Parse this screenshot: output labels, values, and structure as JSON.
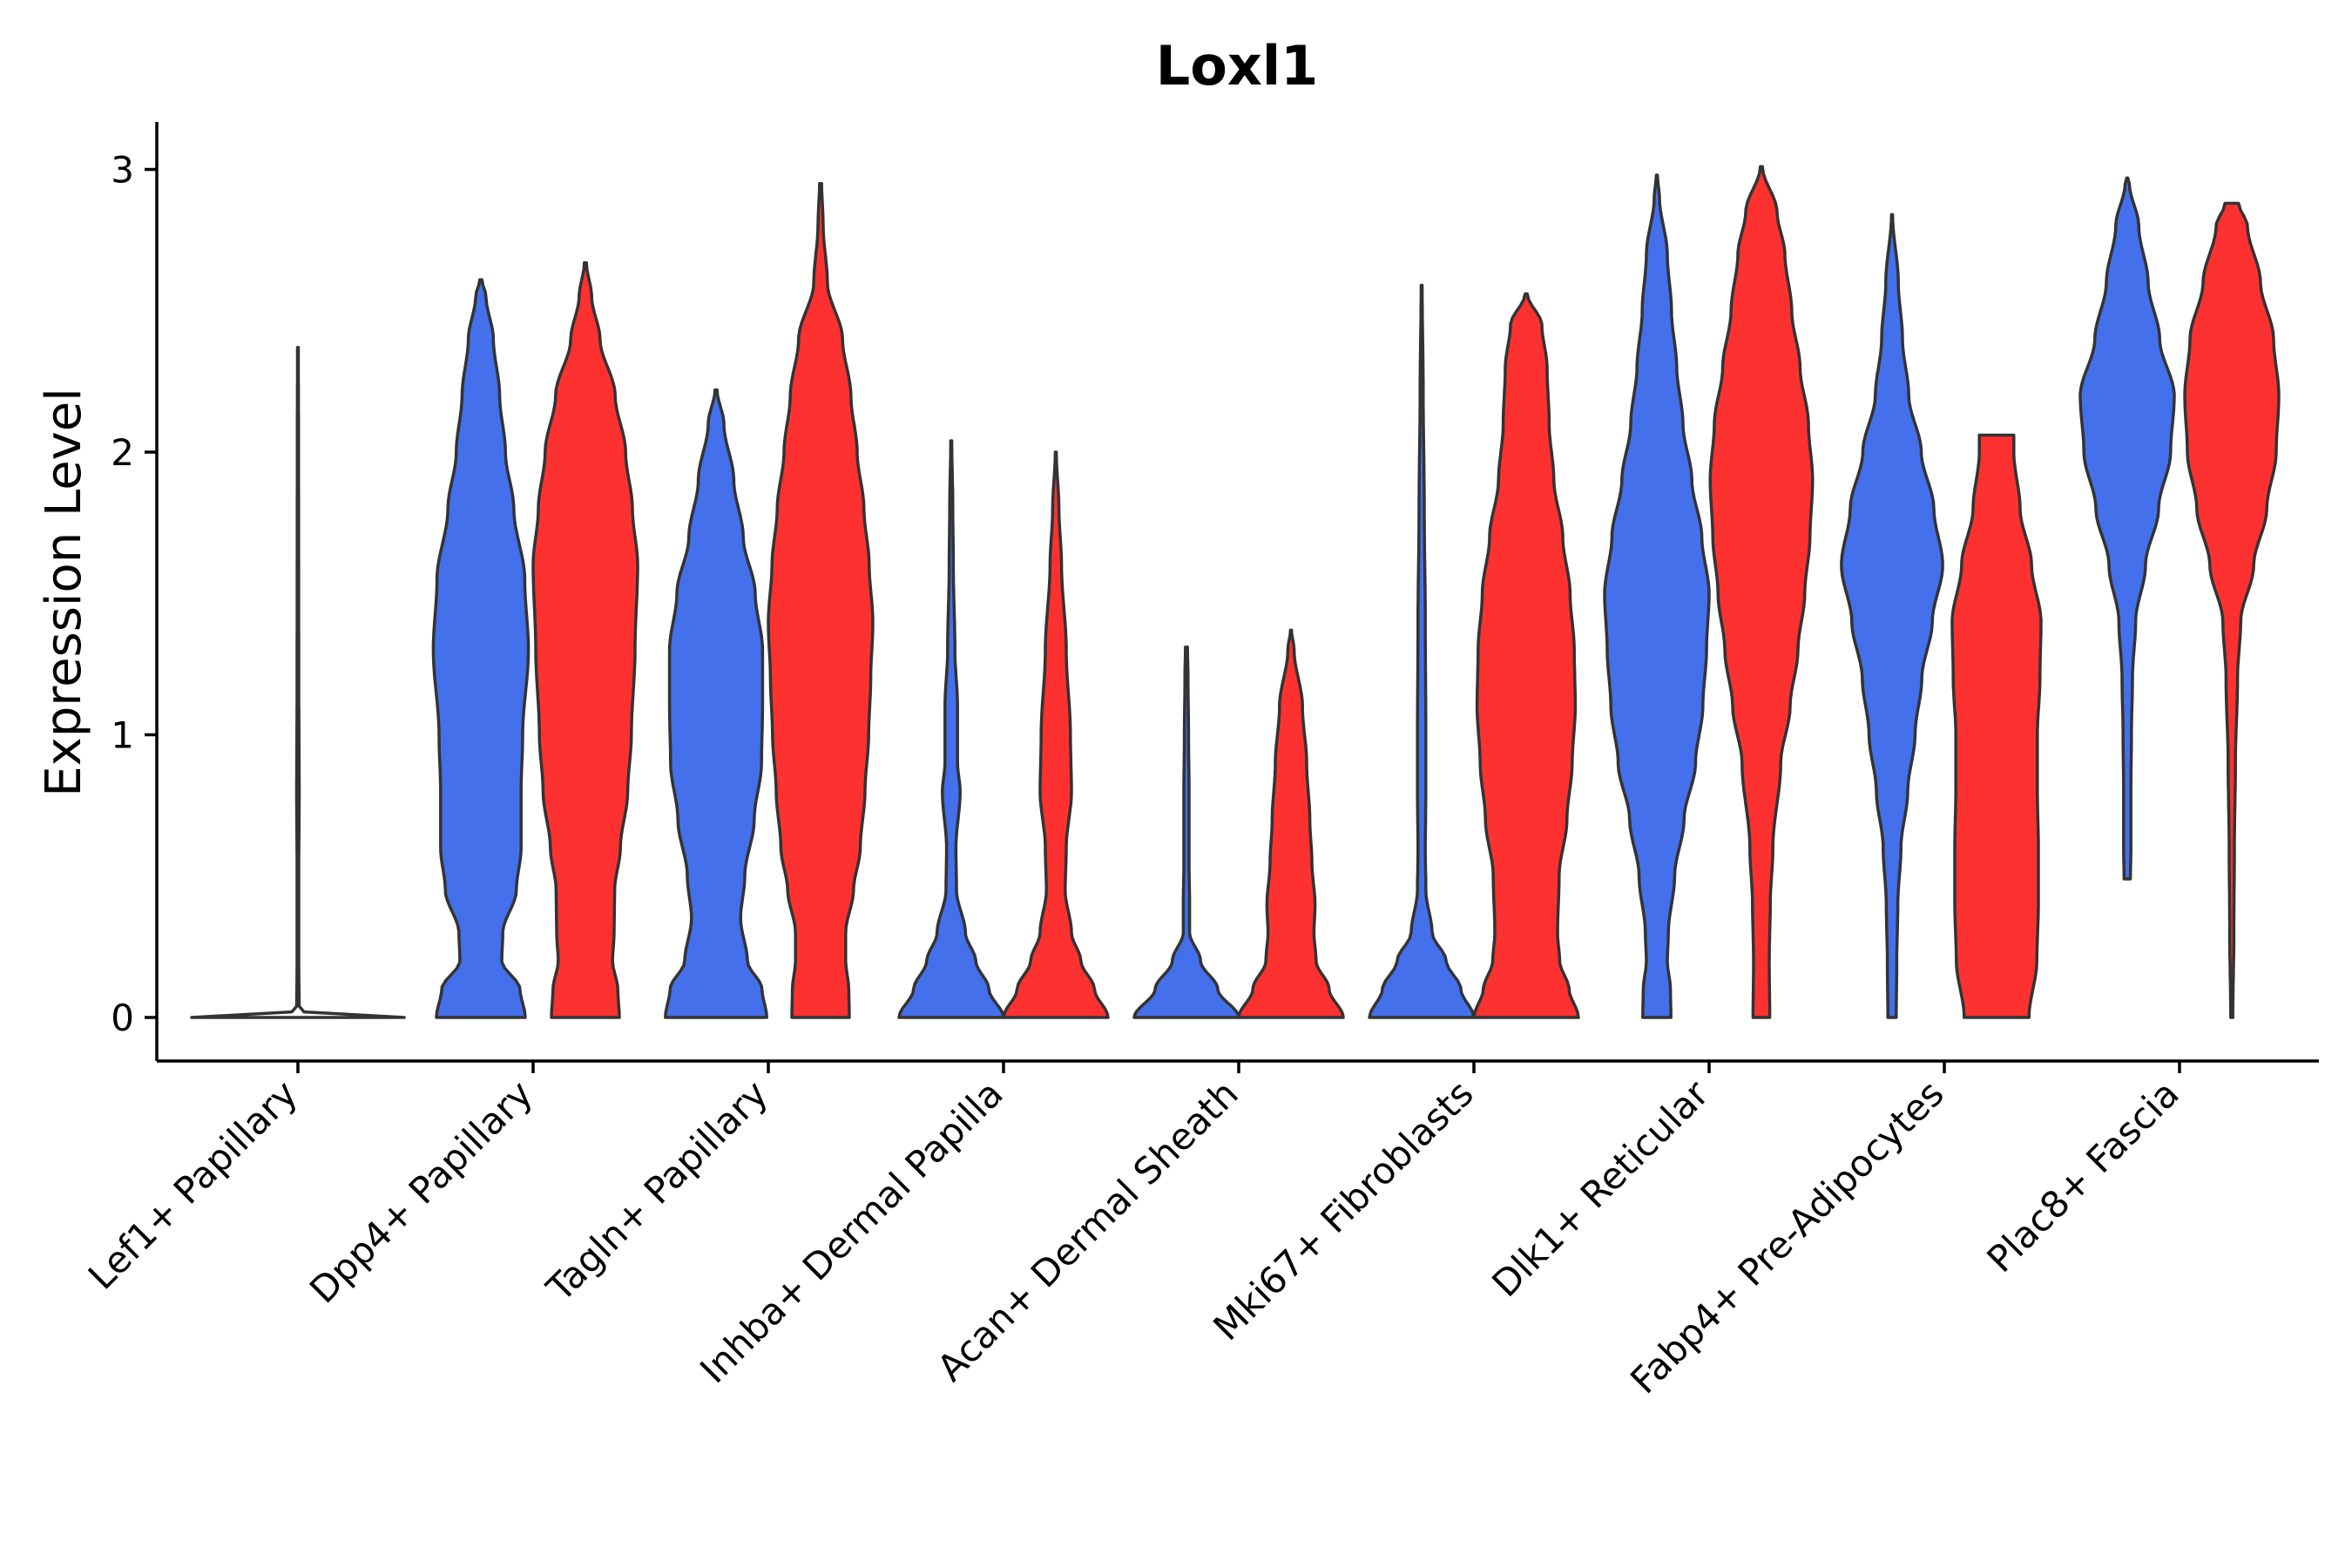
{
  "chart_data": {
    "type": "violin",
    "title": "Loxl1",
    "xlabel": "",
    "ylabel": "Expression Level",
    "ylim": [
      -0.15,
      3.15
    ],
    "yticks": [
      0,
      1,
      2,
      3
    ],
    "grid": false,
    "colors": {
      "blue": "#4470ec",
      "red": "#fe3131",
      "single": "#ffffff"
    },
    "categories": [
      "Lef1+ Papillary",
      "Dpp4+ Papillary",
      "Tagln+ Papillary",
      "Inhba+ Dermal Papilla",
      "Acan+ Dermal Sheath",
      "Mki67+ Fibroblasts",
      "Dlk1+ Reticular",
      "Fabp4+ Pre-Adipocytes",
      "Plac8+ Fascia"
    ],
    "violins": [
      {
        "category": "Lef1+ Papillary",
        "group": "single",
        "color": "single",
        "offset": 0,
        "ymin": 0,
        "ymax": 2.37,
        "density": [
          [
            0,
            1
          ],
          [
            0.004,
            0.55
          ],
          [
            0.01,
            0.1
          ],
          [
            0.03,
            0.012
          ],
          [
            0.2,
            0.008
          ],
          [
            0.5,
            0.008
          ],
          [
            0.8,
            0.012
          ],
          [
            1.2,
            0.008
          ],
          [
            2.0,
            0.006
          ],
          [
            2.37,
            0.004
          ]
        ]
      },
      {
        "category": "Dpp4+ Papillary",
        "group": "blue",
        "color": "blue",
        "offset": -0.5,
        "ymin": 0,
        "ymax": 2.61,
        "density": [
          [
            0,
            0.85
          ],
          [
            0.1,
            0.75
          ],
          [
            0.2,
            0.4
          ],
          [
            0.3,
            0.42
          ],
          [
            0.45,
            0.68
          ],
          [
            0.6,
            0.77
          ],
          [
            0.8,
            0.77
          ],
          [
            1.0,
            0.8
          ],
          [
            1.3,
            0.91
          ],
          [
            1.55,
            0.84
          ],
          [
            1.8,
            0.63
          ],
          [
            2.0,
            0.47
          ],
          [
            2.2,
            0.36
          ],
          [
            2.4,
            0.24
          ],
          [
            2.55,
            0.1
          ],
          [
            2.61,
            0.02
          ]
        ]
      },
      {
        "category": "Dpp4+ Papillary",
        "group": "red",
        "color": "red",
        "offset": 0.5,
        "ymin": 0,
        "ymax": 2.67,
        "density": [
          [
            0,
            0.65
          ],
          [
            0.1,
            0.62
          ],
          [
            0.2,
            0.52
          ],
          [
            0.3,
            0.55
          ],
          [
            0.45,
            0.56
          ],
          [
            0.6,
            0.67
          ],
          [
            0.8,
            0.81
          ],
          [
            1.0,
            0.88
          ],
          [
            1.3,
            0.95
          ],
          [
            1.6,
            1.0
          ],
          [
            1.8,
            0.9
          ],
          [
            2.0,
            0.77
          ],
          [
            2.2,
            0.57
          ],
          [
            2.4,
            0.28
          ],
          [
            2.55,
            0.12
          ],
          [
            2.67,
            0.02
          ]
        ]
      },
      {
        "category": "Tagln+ Papillary",
        "group": "blue",
        "color": "blue",
        "offset": -0.5,
        "ymin": 0,
        "ymax": 2.22,
        "density": [
          [
            0,
            0.97
          ],
          [
            0.1,
            0.88
          ],
          [
            0.2,
            0.6
          ],
          [
            0.35,
            0.47
          ],
          [
            0.5,
            0.55
          ],
          [
            0.7,
            0.73
          ],
          [
            0.9,
            0.87
          ],
          [
            1.1,
            0.89
          ],
          [
            1.3,
            0.89
          ],
          [
            1.5,
            0.75
          ],
          [
            1.7,
            0.52
          ],
          [
            1.9,
            0.34
          ],
          [
            2.1,
            0.15
          ],
          [
            2.22,
            0.02
          ]
        ]
      },
      {
        "category": "Tagln+ Papillary",
        "group": "red",
        "color": "red",
        "offset": 0.5,
        "ymin": 0,
        "ymax": 2.95,
        "density": [
          [
            0,
            0.55
          ],
          [
            0.1,
            0.54
          ],
          [
            0.2,
            0.48
          ],
          [
            0.3,
            0.48
          ],
          [
            0.45,
            0.63
          ],
          [
            0.6,
            0.76
          ],
          [
            0.8,
            0.85
          ],
          [
            1.0,
            0.92
          ],
          [
            1.2,
            0.96
          ],
          [
            1.4,
            1.0
          ],
          [
            1.6,
            0.93
          ],
          [
            1.8,
            0.83
          ],
          [
            2.0,
            0.7
          ],
          [
            2.2,
            0.58
          ],
          [
            2.4,
            0.42
          ],
          [
            2.6,
            0.13
          ],
          [
            2.8,
            0.05
          ],
          [
            2.95,
            0.02
          ]
        ]
      },
      {
        "category": "Inhba+ Dermal Papilla",
        "group": "blue",
        "color": "blue",
        "offset": -0.5,
        "ymin": 0,
        "ymax": 2.04,
        "density": [
          [
            0,
            1.0
          ],
          [
            0.1,
            0.72
          ],
          [
            0.2,
            0.47
          ],
          [
            0.3,
            0.27
          ],
          [
            0.45,
            0.1
          ],
          [
            0.6,
            0.09
          ],
          [
            0.8,
            0.17
          ],
          [
            0.9,
            0.12
          ],
          [
            1.1,
            0.12
          ],
          [
            1.3,
            0.07
          ],
          [
            1.6,
            0.04
          ],
          [
            1.8,
            0.03
          ],
          [
            2.04,
            0.01
          ]
        ]
      },
      {
        "category": "Inhba+ Dermal Papilla",
        "group": "red",
        "color": "red",
        "offset": 0.5,
        "ymin": 0,
        "ymax": 2.0,
        "density": [
          [
            0,
            1.0
          ],
          [
            0.1,
            0.74
          ],
          [
            0.2,
            0.48
          ],
          [
            0.3,
            0.3
          ],
          [
            0.45,
            0.18
          ],
          [
            0.6,
            0.2
          ],
          [
            0.8,
            0.3
          ],
          [
            1.0,
            0.28
          ],
          [
            1.3,
            0.2
          ],
          [
            1.6,
            0.11
          ],
          [
            1.8,
            0.06
          ],
          [
            2.0,
            0.01
          ]
        ]
      },
      {
        "category": "Acan+ Dermal Sheath",
        "group": "blue",
        "color": "blue",
        "offset": -0.5,
        "ymin": 0,
        "ymax": 1.31,
        "density": [
          [
            0,
            1.0
          ],
          [
            0.1,
            0.6
          ],
          [
            0.2,
            0.27
          ],
          [
            0.3,
            0.06
          ],
          [
            0.4,
            0.06
          ],
          [
            0.55,
            0.05
          ],
          [
            0.8,
            0.05
          ],
          [
            1.0,
            0.04
          ],
          [
            1.2,
            0.03
          ],
          [
            1.31,
            0.02
          ]
        ]
      },
      {
        "category": "Acan+ Dermal Sheath",
        "group": "red",
        "color": "red",
        "offset": 0.5,
        "ymin": 0,
        "ymax": 1.37,
        "density": [
          [
            0,
            1.0
          ],
          [
            0.1,
            0.73
          ],
          [
            0.2,
            0.48
          ],
          [
            0.3,
            0.44
          ],
          [
            0.4,
            0.46
          ],
          [
            0.55,
            0.4
          ],
          [
            0.7,
            0.36
          ],
          [
            0.9,
            0.3
          ],
          [
            1.1,
            0.22
          ],
          [
            1.3,
            0.06
          ],
          [
            1.37,
            0.01
          ]
        ]
      },
      {
        "category": "Mki67+ Fibroblasts",
        "group": "blue",
        "color": "blue",
        "offset": -0.5,
        "ymin": 0,
        "ymax": 2.59,
        "density": [
          [
            0,
            1.0
          ],
          [
            0.1,
            0.75
          ],
          [
            0.2,
            0.47
          ],
          [
            0.3,
            0.2
          ],
          [
            0.45,
            0.08
          ],
          [
            0.6,
            0.07
          ],
          [
            0.8,
            0.08
          ],
          [
            1.0,
            0.08
          ],
          [
            1.4,
            0.07
          ],
          [
            1.8,
            0.05
          ],
          [
            2.2,
            0.03
          ],
          [
            2.59,
            0.01
          ]
        ]
      },
      {
        "category": "Mki67+ Fibroblasts",
        "group": "red",
        "color": "red",
        "offset": 0.5,
        "ymin": 0,
        "ymax": 2.56,
        "density": [
          [
            0,
            1.0
          ],
          [
            0.1,
            0.82
          ],
          [
            0.2,
            0.64
          ],
          [
            0.3,
            0.6
          ],
          [
            0.5,
            0.63
          ],
          [
            0.7,
            0.78
          ],
          [
            0.9,
            0.88
          ],
          [
            1.1,
            0.94
          ],
          [
            1.3,
            0.92
          ],
          [
            1.5,
            0.84
          ],
          [
            1.7,
            0.7
          ],
          [
            1.9,
            0.53
          ],
          [
            2.1,
            0.44
          ],
          [
            2.3,
            0.4
          ],
          [
            2.45,
            0.3
          ],
          [
            2.56,
            0.02
          ]
        ]
      },
      {
        "category": "Dlk1+ Reticular",
        "group": "blue",
        "color": "blue",
        "offset": -0.5,
        "ymin": 0,
        "ymax": 2.98,
        "density": [
          [
            0,
            0.27
          ],
          [
            0.1,
            0.26
          ],
          [
            0.2,
            0.2
          ],
          [
            0.3,
            0.22
          ],
          [
            0.5,
            0.34
          ],
          [
            0.7,
            0.52
          ],
          [
            0.9,
            0.74
          ],
          [
            1.1,
            0.88
          ],
          [
            1.3,
            0.95
          ],
          [
            1.5,
            1.0
          ],
          [
            1.7,
            0.86
          ],
          [
            1.9,
            0.67
          ],
          [
            2.1,
            0.5
          ],
          [
            2.3,
            0.38
          ],
          [
            2.5,
            0.28
          ],
          [
            2.7,
            0.2
          ],
          [
            2.9,
            0.05
          ],
          [
            2.98,
            0.01
          ]
        ]
      },
      {
        "category": "Dlk1+ Reticular",
        "group": "red",
        "color": "red",
        "offset": 0.5,
        "ymin": 0,
        "ymax": 3.01,
        "density": [
          [
            0,
            0.16
          ],
          [
            0.2,
            0.15
          ],
          [
            0.4,
            0.17
          ],
          [
            0.6,
            0.22
          ],
          [
            0.9,
            0.37
          ],
          [
            1.1,
            0.55
          ],
          [
            1.3,
            0.7
          ],
          [
            1.5,
            0.83
          ],
          [
            1.7,
            0.93
          ],
          [
            1.9,
            0.98
          ],
          [
            2.1,
            0.9
          ],
          [
            2.3,
            0.74
          ],
          [
            2.5,
            0.58
          ],
          [
            2.7,
            0.45
          ],
          [
            2.85,
            0.3
          ],
          [
            3.01,
            0.02
          ]
        ]
      },
      {
        "category": "Fabp4+ Pre-Adipocytes",
        "group": "blue",
        "color": "blue",
        "offset": -0.5,
        "ymin": 0,
        "ymax": 2.84,
        "density": [
          [
            0,
            0.08
          ],
          [
            0.2,
            0.09
          ],
          [
            0.4,
            0.11
          ],
          [
            0.6,
            0.17
          ],
          [
            0.8,
            0.3
          ],
          [
            1.0,
            0.44
          ],
          [
            1.2,
            0.57
          ],
          [
            1.4,
            0.77
          ],
          [
            1.6,
            0.97
          ],
          [
            1.8,
            0.8
          ],
          [
            2.0,
            0.56
          ],
          [
            2.2,
            0.32
          ],
          [
            2.4,
            0.2
          ],
          [
            2.6,
            0.12
          ],
          [
            2.84,
            0.01
          ]
        ]
      },
      {
        "category": "Fabp4+ Pre-Adipocytes",
        "group": "red",
        "color": "red",
        "offset": 0.5,
        "ymin": 0,
        "ymax": 2.06,
        "density": [
          [
            0,
            0.62
          ],
          [
            0.2,
            0.77
          ],
          [
            0.4,
            0.8
          ],
          [
            0.6,
            0.8
          ],
          [
            0.8,
            0.78
          ],
          [
            1.0,
            0.78
          ],
          [
            1.2,
            0.83
          ],
          [
            1.4,
            0.85
          ],
          [
            1.6,
            0.67
          ],
          [
            1.8,
            0.45
          ],
          [
            2.0,
            0.33
          ],
          [
            2.06,
            0.33
          ]
        ]
      },
      {
        "category": "Plac8+ Fascia",
        "group": "blue",
        "color": "blue",
        "offset": -0.5,
        "ymin": 0.49,
        "ymax": 2.97,
        "density": [
          [
            0.49,
            0.06
          ],
          [
            0.6,
            0.07
          ],
          [
            0.8,
            0.07
          ],
          [
            1.0,
            0.08
          ],
          [
            1.2,
            0.1
          ],
          [
            1.4,
            0.16
          ],
          [
            1.6,
            0.35
          ],
          [
            1.8,
            0.6
          ],
          [
            2.0,
            0.83
          ],
          [
            2.2,
            0.9
          ],
          [
            2.4,
            0.62
          ],
          [
            2.6,
            0.4
          ],
          [
            2.8,
            0.22
          ],
          [
            2.95,
            0.04
          ],
          [
            2.97,
            0.01
          ]
        ]
      },
      {
        "category": "Plac8+ Fascia",
        "group": "red",
        "color": "red",
        "offset": 0.5,
        "ymin": 0,
        "ymax": 2.88,
        "density": [
          [
            0,
            0.02
          ],
          [
            0.3,
            0.04
          ],
          [
            0.6,
            0.05
          ],
          [
            0.9,
            0.07
          ],
          [
            1.2,
            0.11
          ],
          [
            1.4,
            0.17
          ],
          [
            1.6,
            0.42
          ],
          [
            1.8,
            0.67
          ],
          [
            2.0,
            0.85
          ],
          [
            2.2,
            0.9
          ],
          [
            2.4,
            0.8
          ],
          [
            2.6,
            0.55
          ],
          [
            2.8,
            0.3
          ],
          [
            2.88,
            0.13
          ]
        ]
      }
    ]
  }
}
